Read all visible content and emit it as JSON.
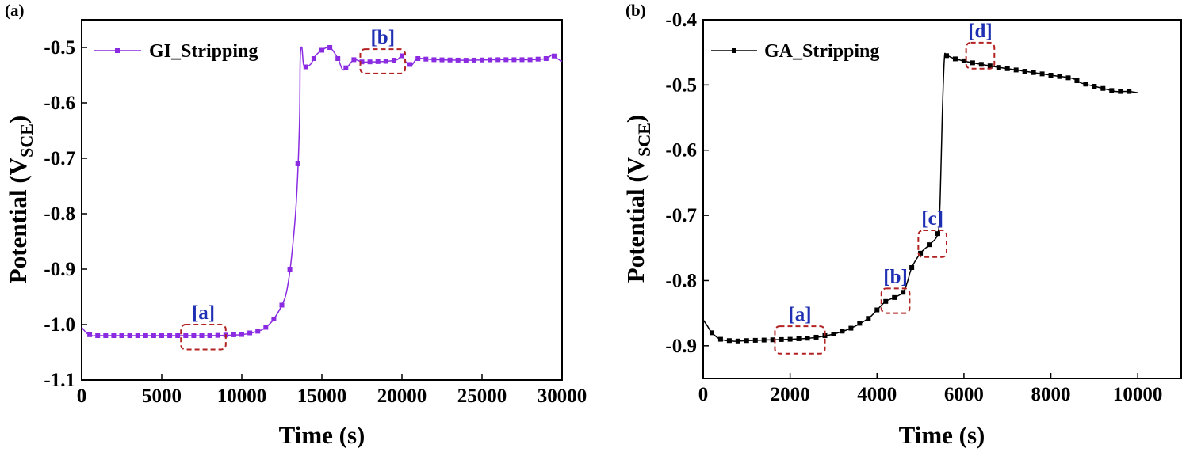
{
  "chart_data": [
    {
      "panel": "(a)",
      "type": "line",
      "xlabel": "Time (s)",
      "ylabel_main": "Potential (V",
      "ylabel_sub": "SCE",
      "ylabel_close": ")",
      "xlim": [
        0,
        30000
      ],
      "ylim": [
        -1.1,
        -0.45
      ],
      "xticks": [
        "0",
        "5000",
        "10000",
        "15000",
        "20000",
        "25000",
        "30000"
      ],
      "yticks": [
        "-0.5",
        "-0.6",
        "-0.7",
        "-0.8",
        "-0.9",
        "-1.0",
        "-1.1"
      ],
      "legend_position": "top-left",
      "series": [
        {
          "name": "GI_Stripping",
          "color": "#8a2be2",
          "marker": "square",
          "x": [
            0,
            300,
            600,
            1000,
            2000,
            4000,
            6000,
            8000,
            10000,
            11000,
            11500,
            12000,
            12500,
            12800,
            13100,
            13400,
            13600,
            13650,
            13750,
            13850,
            14000,
            14300,
            14600,
            15000,
            15500,
            16000,
            16300,
            16600,
            17000,
            17500,
            18000,
            19000,
            19700,
            20000,
            20300,
            20600,
            21000,
            22000,
            24000,
            26000,
            28000,
            29000,
            29400,
            29700,
            30000
          ],
          "y": [
            -1.005,
            -1.015,
            -1.02,
            -1.02,
            -1.02,
            -1.02,
            -1.02,
            -1.02,
            -1.018,
            -1.012,
            -1.005,
            -0.99,
            -0.965,
            -0.94,
            -0.88,
            -0.78,
            -0.64,
            -0.52,
            -0.5,
            -0.53,
            -0.535,
            -0.53,
            -0.515,
            -0.505,
            -0.5,
            -0.52,
            -0.54,
            -0.535,
            -0.522,
            -0.526,
            -0.526,
            -0.525,
            -0.522,
            -0.515,
            -0.528,
            -0.532,
            -0.52,
            -0.522,
            -0.523,
            -0.522,
            -0.522,
            -0.52,
            -0.513,
            -0.52,
            -0.525
          ]
        }
      ],
      "annotations": [
        {
          "label": "[a]",
          "x0": 6200,
          "x1": 9000,
          "y0": -1.045,
          "y1": -1.0
        },
        {
          "label": "[b]",
          "x0": 17400,
          "x1": 20200,
          "y0": -0.547,
          "y1": -0.503
        }
      ]
    },
    {
      "panel": "(b)",
      "type": "line",
      "xlabel": "Time (s)",
      "ylabel_main": "Potential (V",
      "ylabel_sub": "SCE",
      "ylabel_close": ")",
      "xlim": [
        0,
        11000
      ],
      "ylim": [
        -0.95,
        -0.4
      ],
      "xticks": [
        "0",
        "2000",
        "4000",
        "6000",
        "8000",
        "10000"
      ],
      "yticks": [
        "-0.4",
        "-0.5",
        "-0.6",
        "-0.7",
        "-0.8",
        "-0.9"
      ],
      "legend_position": "top-left",
      "series": [
        {
          "name": "GA_Stripping",
          "color": "#000000",
          "marker": "square",
          "x": [
            0,
            100,
            200,
            400,
            700,
            1000,
            1500,
            2000,
            2500,
            3000,
            3400,
            3800,
            4000,
            4200,
            4400,
            4600,
            4700,
            4800,
            5000,
            5200,
            5400,
            5450,
            5500,
            5550,
            5600,
            5800,
            6200,
            6800,
            7500,
            8000,
            8500,
            8700,
            9000,
            9300,
            9500,
            9800,
            10000
          ],
          "y": [
            -0.86,
            -0.87,
            -0.88,
            -0.89,
            -0.893,
            -0.892,
            -0.891,
            -0.89,
            -0.888,
            -0.882,
            -0.873,
            -0.858,
            -0.845,
            -0.832,
            -0.826,
            -0.818,
            -0.802,
            -0.78,
            -0.758,
            -0.745,
            -0.728,
            -0.68,
            -0.55,
            -0.46,
            -0.455,
            -0.46,
            -0.466,
            -0.473,
            -0.48,
            -0.485,
            -0.49,
            -0.497,
            -0.502,
            -0.507,
            -0.51,
            -0.51,
            -0.512
          ]
        }
      ],
      "annotations": [
        {
          "label": "[a]",
          "x0": 1650,
          "x1": 2800,
          "y0": -0.912,
          "y1": -0.87
        },
        {
          "label": "[b]",
          "x0": 4100,
          "x1": 4750,
          "y0": -0.85,
          "y1": -0.812
        },
        {
          "label": "[c]",
          "x0": 4950,
          "x1": 5600,
          "y0": -0.764,
          "y1": -0.723
        },
        {
          "label": "[d]",
          "x0": 6050,
          "x1": 6700,
          "y0": -0.475,
          "y1": -0.435
        }
      ]
    }
  ]
}
